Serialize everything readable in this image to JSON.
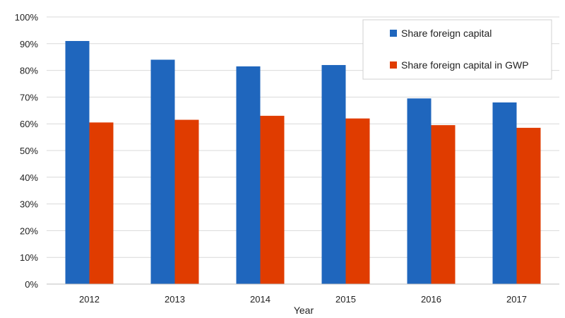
{
  "chart_data": {
    "type": "bar",
    "title": "",
    "xlabel": "Year",
    "ylabel": "",
    "categories": [
      "2012",
      "2013",
      "2014",
      "2015",
      "2016",
      "2017"
    ],
    "series": [
      {
        "name": "Share foreign capital",
        "color": "#1f66bd",
        "values": [
          91,
          84,
          81.5,
          82,
          69.5,
          68
        ]
      },
      {
        "name": "Share foreign capital in GWP",
        "color": "#e03c00",
        "values": [
          60.5,
          61.5,
          63,
          62,
          59.5,
          58.5
        ]
      }
    ],
    "ylim": [
      0,
      100
    ],
    "yticks": [
      "0%",
      "10%",
      "20%",
      "30%",
      "40%",
      "50%",
      "60%",
      "70%",
      "80%",
      "90%",
      "100%"
    ],
    "grid": true,
    "legend_position": "top-right"
  }
}
